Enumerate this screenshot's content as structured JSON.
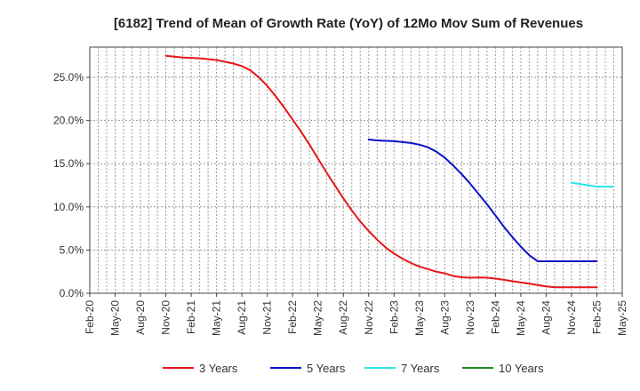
{
  "chart_data": {
    "type": "line",
    "title": "[6182]  Trend of Mean of Growth Rate (YoY) of 12Mo Mov Sum of Revenues",
    "xlabel": "",
    "ylabel": "",
    "ylim": [
      0,
      28.5
    ],
    "yticks": [
      0,
      5,
      10,
      15,
      20,
      25
    ],
    "ytick_labels": [
      "0.0%",
      "5.0%",
      "10.0%",
      "15.0%",
      "20.0%",
      "25.0%"
    ],
    "grid": true,
    "legend_position": "bottom",
    "x_tick_labels": [
      "Feb-20",
      "May-20",
      "Aug-20",
      "Nov-20",
      "Feb-21",
      "May-21",
      "Aug-21",
      "Nov-21",
      "Feb-22",
      "May-22",
      "Aug-22",
      "Nov-22",
      "Feb-23",
      "May-23",
      "Aug-23",
      "Nov-23",
      "Feb-24",
      "May-24",
      "Aug-24",
      "Nov-24",
      "Feb-25",
      "May-25"
    ],
    "series": [
      {
        "name": "3 Years",
        "color": "#e8161b",
        "x": [
          9,
          10,
          11,
          12,
          13,
          14,
          15,
          16,
          17,
          18,
          19,
          20,
          21,
          22,
          23,
          24,
          25,
          26,
          27,
          28,
          29,
          30,
          31,
          32,
          33,
          34,
          35,
          36,
          37,
          38,
          39,
          40,
          41,
          42,
          43,
          44,
          45,
          46,
          47,
          48,
          49,
          50,
          51,
          52,
          53,
          54,
          55,
          56,
          57,
          58,
          59,
          60
        ],
        "y": [
          27.5,
          27.4,
          27.3,
          27.25,
          27.2,
          27.1,
          27.0,
          26.8,
          26.6,
          26.3,
          25.8,
          25.0,
          24.0,
          22.8,
          21.5,
          20.1,
          18.7,
          17.2,
          15.6,
          14.0,
          12.5,
          11.0,
          9.6,
          8.3,
          7.2,
          6.2,
          5.3,
          4.6,
          4.0,
          3.5,
          3.1,
          2.8,
          2.5,
          2.3,
          2.0,
          1.85,
          1.8,
          1.82,
          1.8,
          1.7,
          1.55,
          1.4,
          1.25,
          1.1,
          0.95,
          0.8,
          0.7,
          0.7,
          0.7,
          0.7,
          0.7,
          0.7
        ]
      },
      {
        "name": "5 Years",
        "color": "#0c12c4",
        "x": [
          33,
          34,
          35,
          36,
          37,
          38,
          39,
          40,
          41,
          42,
          43,
          44,
          45,
          46,
          47,
          48,
          49,
          50,
          51,
          52,
          53,
          54,
          55,
          56,
          57,
          58,
          59,
          60
        ],
        "y": [
          17.8,
          17.7,
          17.65,
          17.6,
          17.5,
          17.4,
          17.2,
          16.9,
          16.4,
          15.7,
          14.8,
          13.8,
          12.7,
          11.5,
          10.3,
          9.0,
          7.7,
          6.5,
          5.4,
          4.4,
          3.7,
          3.7,
          3.7,
          3.7,
          3.7,
          3.7,
          3.7,
          3.7
        ]
      },
      {
        "name": "7 Years",
        "color": "#2ee6ea",
        "x": [
          57,
          58,
          59,
          60,
          61,
          62
        ],
        "y": [
          12.8,
          12.65,
          12.5,
          12.35,
          12.35,
          12.35
        ]
      },
      {
        "name": "10 Years",
        "color": "#1a8a1f",
        "x": [],
        "y": []
      }
    ]
  },
  "legend": {
    "items": [
      {
        "label": "3 Years",
        "color": "#e8161b"
      },
      {
        "label": "5 Years",
        "color": "#0c12c4"
      },
      {
        "label": "7 Years",
        "color": "#2ee6ea"
      },
      {
        "label": "10 Years",
        "color": "#1a8a1f"
      }
    ]
  }
}
